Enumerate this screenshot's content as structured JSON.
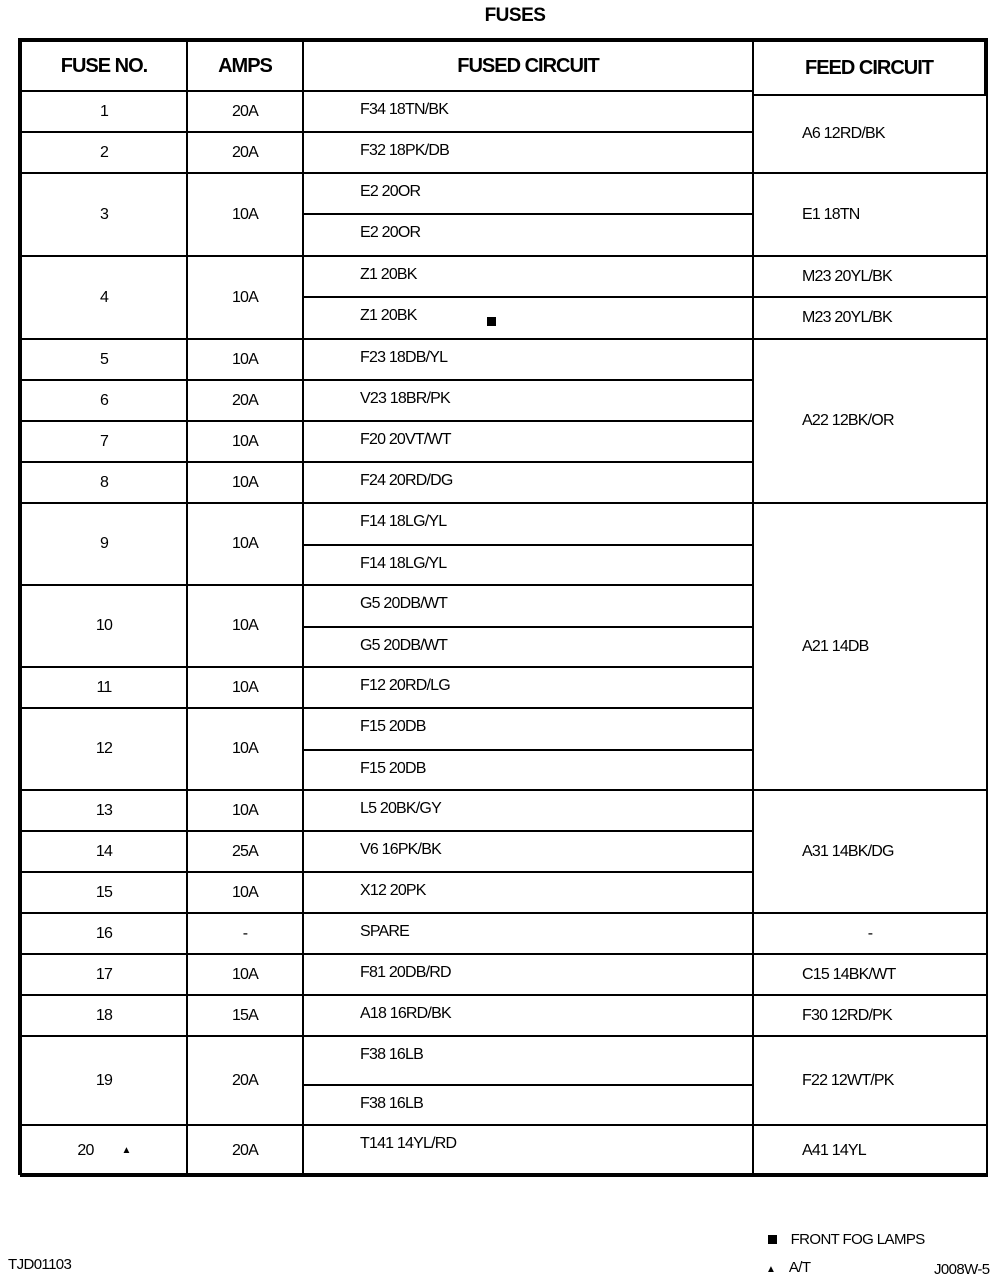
{
  "title": "FUSES",
  "headers": {
    "fuse_no": "FUSE NO.",
    "amps": "AMPS",
    "fused_circuit": "FUSED CIRCUIT",
    "feed_circuit": "FEED CIRCUIT"
  },
  "fuses": [
    {
      "fuse_no": "1",
      "amps": "20A",
      "circuits": [
        "F34 18TN/BK"
      ]
    },
    {
      "fuse_no": "2",
      "amps": "20A",
      "circuits": [
        "F32 18PK/DB"
      ]
    },
    {
      "fuse_no": "3",
      "amps": "10A",
      "circuits": [
        "E2 20OR",
        "E2 20OR"
      ]
    },
    {
      "fuse_no": "4",
      "amps": "10A",
      "circuits": [
        "Z1 20BK",
        "Z1 20BK"
      ],
      "circuit_marks": [
        null,
        "square"
      ]
    },
    {
      "fuse_no": "5",
      "amps": "10A",
      "circuits": [
        "F23 18DB/YL"
      ]
    },
    {
      "fuse_no": "6",
      "amps": "20A",
      "circuits": [
        "V23 18BR/PK"
      ]
    },
    {
      "fuse_no": "7",
      "amps": "10A",
      "circuits": [
        "F20 20VT/WT"
      ]
    },
    {
      "fuse_no": "8",
      "amps": "10A",
      "circuits": [
        "F24 20RD/DG"
      ]
    },
    {
      "fuse_no": "9",
      "amps": "10A",
      "circuits": [
        "F14 18LG/YL",
        "F14 18LG/YL"
      ]
    },
    {
      "fuse_no": "10",
      "amps": "10A",
      "circuits": [
        "G5 20DB/WT",
        "G5 20DB/WT"
      ]
    },
    {
      "fuse_no": "11",
      "amps": "10A",
      "circuits": [
        "F12 20RD/LG"
      ]
    },
    {
      "fuse_no": "12",
      "amps": "10A",
      "circuits": [
        "F15 20DB",
        "F15 20DB"
      ]
    },
    {
      "fuse_no": "13",
      "amps": "10A",
      "circuits": [
        "L5 20BK/GY"
      ]
    },
    {
      "fuse_no": "14",
      "amps": "25A",
      "circuits": [
        "V6 16PK/BK"
      ]
    },
    {
      "fuse_no": "15",
      "amps": "10A",
      "circuits": [
        "X12 20PK"
      ]
    },
    {
      "fuse_no": "16",
      "amps": "-",
      "circuits": [
        "SPARE"
      ]
    },
    {
      "fuse_no": "17",
      "amps": "10A",
      "circuits": [
        "F81 20DB/RD"
      ]
    },
    {
      "fuse_no": "18",
      "amps": "15A",
      "circuits": [
        "A18 16RD/BK"
      ]
    },
    {
      "fuse_no": "19",
      "amps": "20A",
      "circuits": [
        "F38 16LB",
        "F38 16LB"
      ]
    },
    {
      "fuse_no": "20",
      "amps": "20A",
      "circuits": [
        "T141 14YL/RD"
      ],
      "fuse_mark": "triangle"
    }
  ],
  "feeds": [
    {
      "label": "A6 12RD/BK",
      "span": 2
    },
    {
      "label": "E1 18TN",
      "span": 2
    },
    {
      "label": "M23 20YL/BK",
      "span": 1
    },
    {
      "label": "M23 20YL/BK",
      "span": 1
    },
    {
      "label": "A22 12BK/OR",
      "span": 4
    },
    {
      "label": "A21 14DB",
      "span": 7
    },
    {
      "label": "A31 14BK/DG",
      "span": 3
    },
    {
      "label": "-",
      "span": 1
    },
    {
      "label": "C15 14BK/WT",
      "span": 1
    },
    {
      "label": "F30 12RD/PK",
      "span": 1
    },
    {
      "label": "F22 12WT/PK",
      "span": 2
    },
    {
      "label": "A41 14YL",
      "span": 1
    }
  ],
  "legend": [
    {
      "icon": "square",
      "label": "FRONT FOG LAMPS"
    },
    {
      "icon": "triangle",
      "label": "A/T"
    }
  ],
  "footer": {
    "left_code": "TJD01103",
    "right_code": "J008W-5"
  }
}
